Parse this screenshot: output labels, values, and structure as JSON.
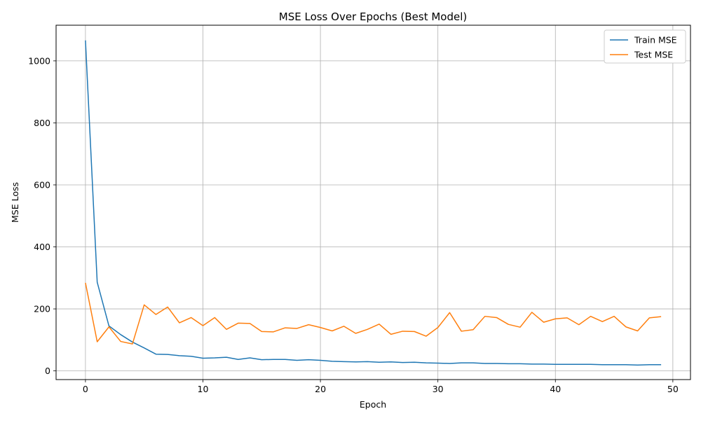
{
  "chart_data": {
    "type": "line",
    "title": "MSE Loss Over Epochs (Best Model)",
    "xlabel": "Epoch",
    "ylabel": "MSE Loss",
    "xlim": [
      -2.5,
      51.5
    ],
    "ylim": [
      -28,
      1115
    ],
    "xticks": [
      0,
      10,
      20,
      30,
      40,
      50
    ],
    "yticks": [
      0,
      200,
      400,
      600,
      800,
      1000
    ],
    "grid": true,
    "legend_position": "top-right",
    "x": [
      0,
      1,
      2,
      3,
      4,
      5,
      6,
      7,
      8,
      9,
      10,
      11,
      12,
      13,
      14,
      15,
      16,
      17,
      18,
      19,
      20,
      21,
      22,
      23,
      24,
      25,
      26,
      27,
      28,
      29,
      30,
      31,
      32,
      33,
      34,
      35,
      36,
      37,
      38,
      39,
      40,
      41,
      42,
      43,
      44,
      45,
      46,
      47,
      48,
      49
    ],
    "series": [
      {
        "name": "Train MSE",
        "color": "#1f77b4",
        "values": [
          1066,
          286,
          145,
          117,
          93,
          74,
          54,
          53,
          49,
          47,
          41,
          42,
          44,
          37,
          42,
          36,
          37,
          37,
          34,
          36,
          34,
          31,
          30,
          29,
          30,
          28,
          29,
          27,
          28,
          26,
          25,
          24,
          26,
          26,
          24,
          24,
          23,
          23,
          22,
          22,
          21,
          21,
          21,
          21,
          20,
          20,
          20,
          19,
          20,
          20
        ]
      },
      {
        "name": "Test MSE",
        "color": "#ff7f0e",
        "values": [
          284,
          94,
          142,
          95,
          87,
          213,
          182,
          206,
          155,
          172,
          146,
          172,
          134,
          154,
          153,
          127,
          126,
          139,
          137,
          149,
          140,
          129,
          144,
          121,
          134,
          151,
          118,
          128,
          127,
          112,
          140,
          188,
          128,
          133,
          176,
          172,
          150,
          141,
          189,
          157,
          168,
          171,
          149,
          176,
          159,
          176,
          142,
          129,
          171,
          175
        ]
      }
    ]
  }
}
